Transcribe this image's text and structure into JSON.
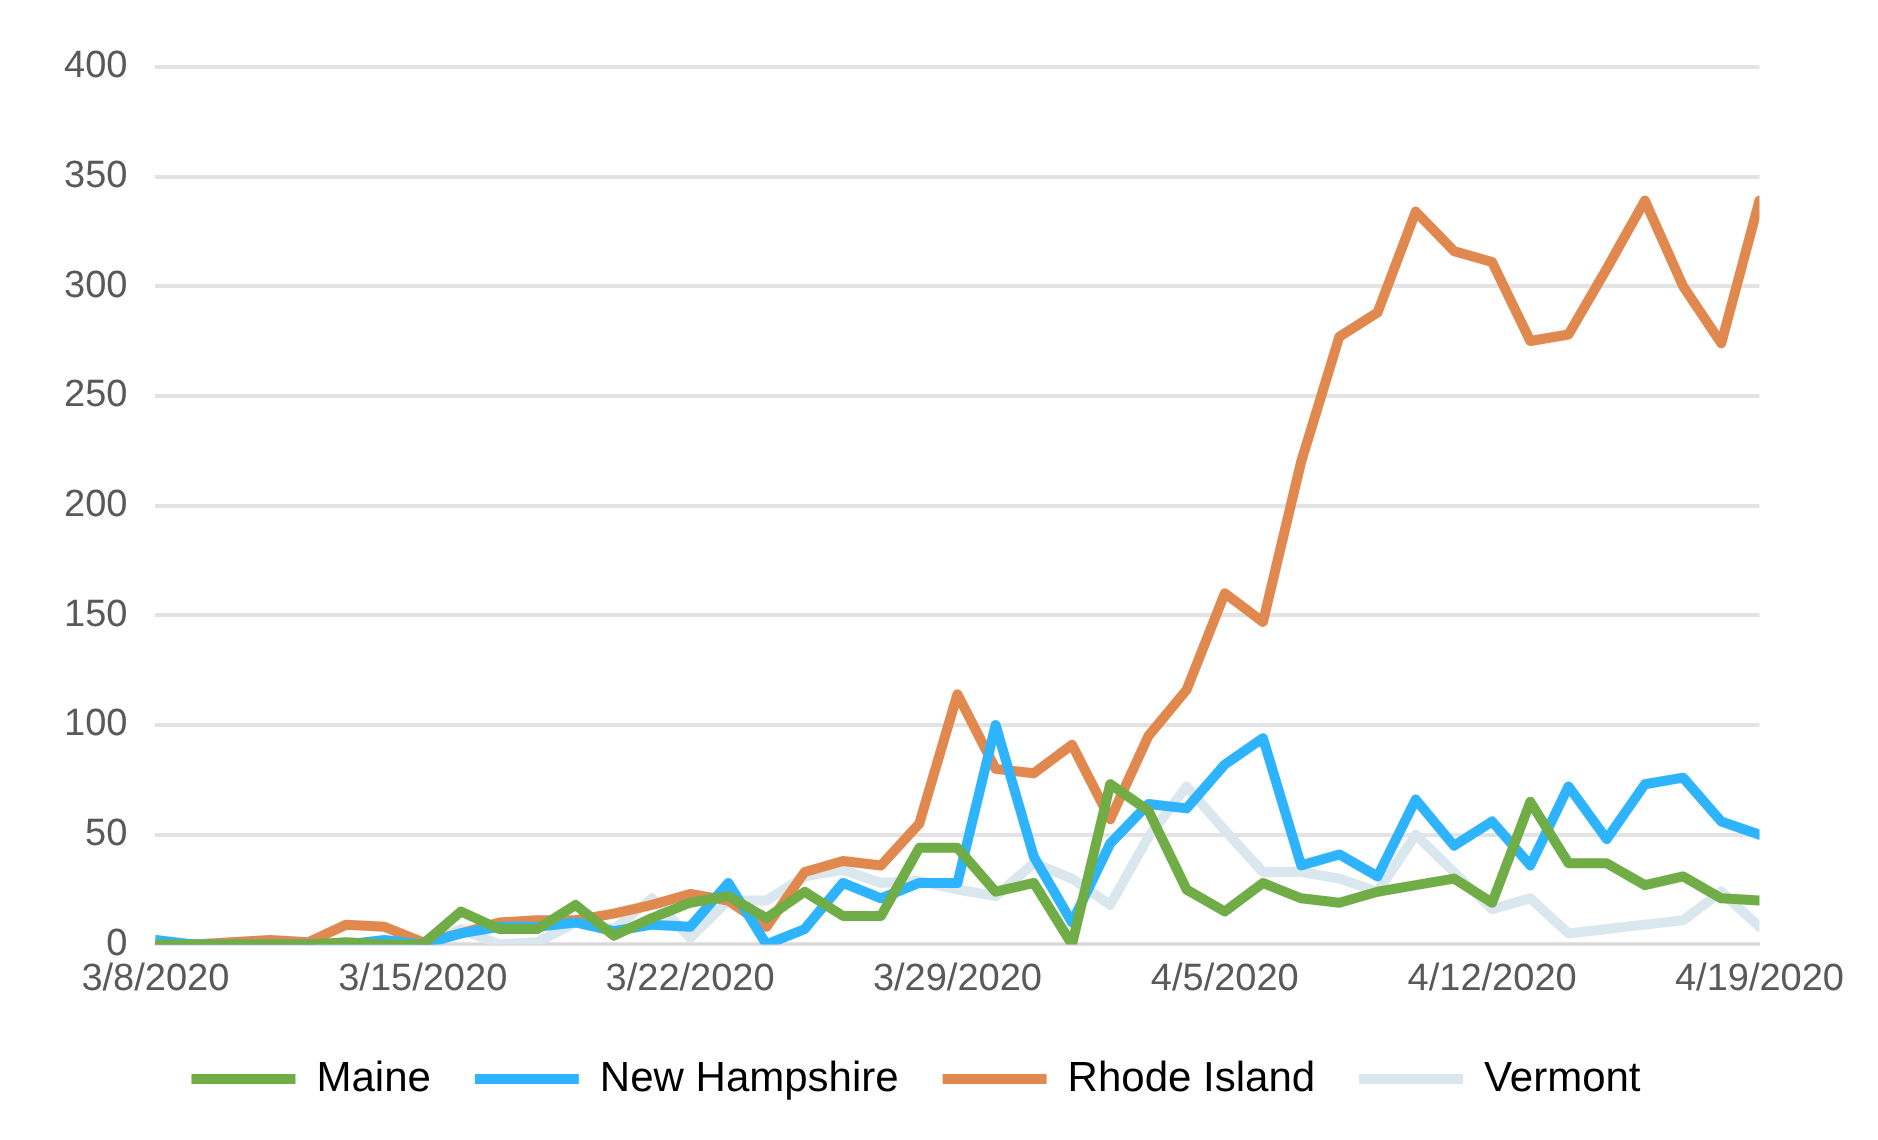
{
  "chart_data": {
    "type": "line",
    "x": [
      "2020-03-08",
      "2020-03-09",
      "2020-03-10",
      "2020-03-11",
      "2020-03-12",
      "2020-03-13",
      "2020-03-14",
      "2020-03-15",
      "2020-03-16",
      "2020-03-17",
      "2020-03-18",
      "2020-03-19",
      "2020-03-20",
      "2020-03-21",
      "2020-03-22",
      "2020-03-23",
      "2020-03-24",
      "2020-03-25",
      "2020-03-26",
      "2020-03-27",
      "2020-03-28",
      "2020-03-29",
      "2020-03-30",
      "2020-03-31",
      "2020-04-01",
      "2020-04-02",
      "2020-04-03",
      "2020-04-04",
      "2020-04-05",
      "2020-04-06",
      "2020-04-07",
      "2020-04-08",
      "2020-04-09",
      "2020-04-10",
      "2020-04-11",
      "2020-04-12",
      "2020-04-13",
      "2020-04-14",
      "2020-04-15",
      "2020-04-16",
      "2020-04-17",
      "2020-04-18",
      "2020-04-19"
    ],
    "series": [
      {
        "name": "Maine",
        "color": "#70ad47",
        "values": [
          0,
          0,
          0,
          0,
          0,
          1,
          0,
          0,
          15,
          7,
          7,
          18,
          4,
          12,
          19,
          22,
          12,
          24,
          13,
          13,
          44,
          44,
          24,
          28,
          0,
          73,
          61,
          25,
          15,
          28,
          21,
          19,
          24,
          27,
          30,
          19,
          65,
          37,
          37,
          27,
          31,
          21,
          20
        ]
      },
      {
        "name": "New Hampshire",
        "color": "#2eb4ff",
        "values": [
          2,
          0,
          0,
          0,
          0,
          0,
          2,
          0,
          5,
          8,
          8,
          10,
          6,
          9,
          8,
          28,
          0,
          7,
          28,
          21,
          28,
          28,
          100,
          40,
          10,
          46,
          64,
          62,
          82,
          94,
          36,
          41,
          31,
          66,
          45,
          56,
          36,
          72,
          48,
          73,
          76,
          56,
          50
        ]
      },
      {
        "name": "Rhode Island",
        "color": "#e0884e",
        "values": [
          0,
          0,
          1,
          2,
          1,
          9,
          8,
          1,
          5,
          10,
          11,
          11,
          14,
          18,
          23,
          20,
          8,
          33,
          38,
          36,
          55,
          114,
          80,
          78,
          91,
          57,
          95,
          116,
          160,
          147,
          220,
          277,
          288,
          334,
          316,
          311,
          275,
          278,
          308,
          339,
          300,
          274,
          339
        ]
      },
      {
        "name": "Vermont",
        "color": "#dae7ee",
        "values": [
          0,
          0,
          0,
          0,
          0,
          0,
          0,
          0,
          7,
          0,
          1,
          10,
          7,
          21,
          3,
          20,
          20,
          31,
          34,
          28,
          29,
          25,
          22,
          37,
          30,
          18,
          49,
          72,
          52,
          33,
          33,
          30,
          24,
          50,
          33,
          16,
          21,
          5,
          7,
          9,
          11,
          24,
          8
        ]
      }
    ],
    "xlim": [
      "2020-03-08",
      "2020-04-19"
    ],
    "xticks": [
      {
        "value": "2020-03-08",
        "label": "3/8/2020"
      },
      {
        "value": "2020-03-15",
        "label": "3/15/2020"
      },
      {
        "value": "2020-03-22",
        "label": "3/22/2020"
      },
      {
        "value": "2020-03-29",
        "label": "3/29/2020"
      },
      {
        "value": "2020-04-05",
        "label": "4/5/2020"
      },
      {
        "value": "2020-04-12",
        "label": "4/12/2020"
      },
      {
        "value": "2020-04-19",
        "label": "4/19/2020"
      }
    ],
    "ylim": [
      0,
      400
    ],
    "yticks": [
      0,
      50,
      100,
      150,
      200,
      250,
      300,
      350,
      400
    ],
    "grid": "y",
    "legend": "bottom",
    "marker": "none",
    "line_style": "solid"
  }
}
